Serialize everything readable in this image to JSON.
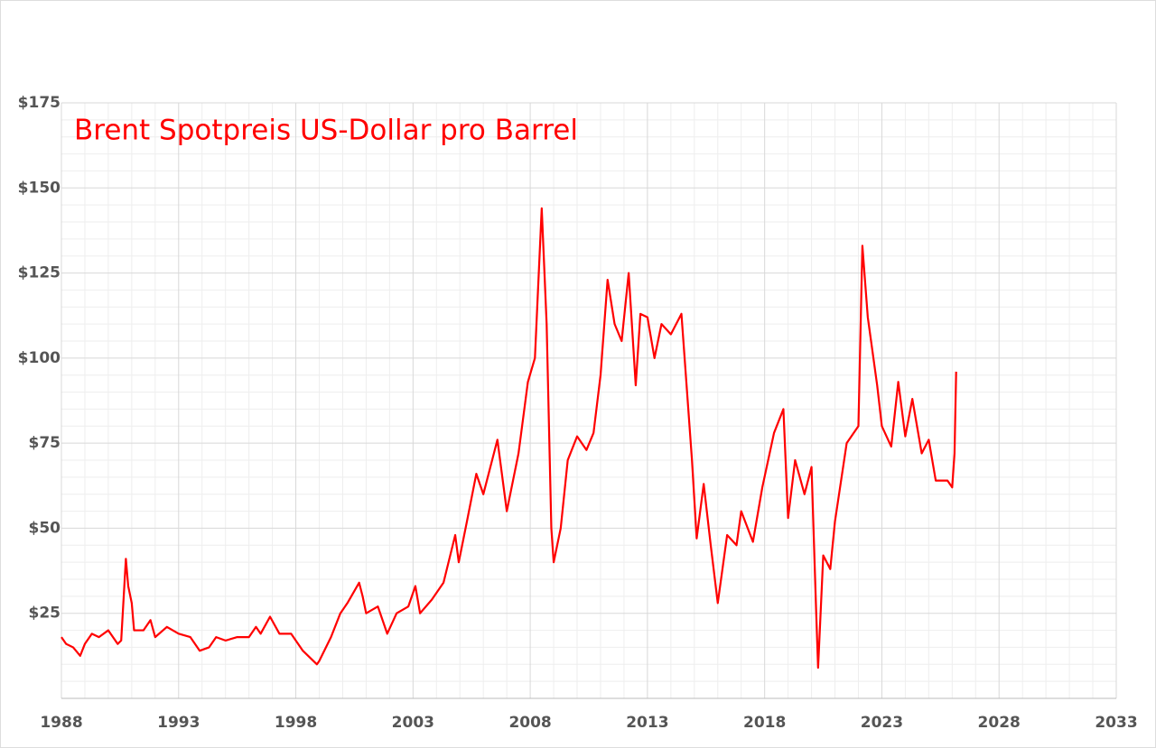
{
  "chart_data": {
    "type": "line",
    "title": "Brent Spotpreis US-Dollar pro Barrel",
    "title_color": "#ff0000",
    "series": [
      {
        "name": "Brent",
        "color": "#ff0000",
        "x": [
          1988.0,
          1988.2,
          1988.5,
          1988.8,
          1989.0,
          1989.3,
          1989.6,
          1990.0,
          1990.4,
          1990.55,
          1990.75,
          1990.85,
          1991.0,
          1991.1,
          1991.5,
          1991.8,
          1992.0,
          1992.5,
          1993.0,
          1993.5,
          1993.9,
          1994.3,
          1994.6,
          1995.0,
          1995.5,
          1996.0,
          1996.3,
          1996.5,
          1996.9,
          1997.3,
          1997.8,
          1998.3,
          1998.9,
          1999.0,
          1999.5,
          1999.9,
          2000.2,
          2000.7,
          2000.85,
          2001.0,
          2001.5,
          2001.9,
          2002.3,
          2002.8,
          2003.1,
          2003.3,
          2003.8,
          2004.3,
          2004.8,
          2004.95,
          2005.3,
          2005.7,
          2006.0,
          2006.6,
          2007.0,
          2007.5,
          2007.9,
          2008.2,
          2008.49,
          2008.7,
          2008.9,
          2009.0,
          2009.3,
          2009.6,
          2010.0,
          2010.4,
          2010.7,
          2011.0,
          2011.3,
          2011.6,
          2011.9,
          2012.2,
          2012.5,
          2012.7,
          2013.0,
          2013.3,
          2013.6,
          2014.0,
          2014.45,
          2014.9,
          2015.1,
          2015.4,
          2015.7,
          2016.0,
          2016.4,
          2016.8,
          2017.0,
          2017.5,
          2017.9,
          2018.4,
          2018.8,
          2019.0,
          2019.3,
          2019.7,
          2020.0,
          2020.2,
          2020.28,
          2020.5,
          2020.8,
          2021.0,
          2021.5,
          2022.0,
          2022.17,
          2022.4,
          2022.8,
          2023.0,
          2023.4,
          2023.7,
          2024.0,
          2024.3,
          2024.7,
          2025.0,
          2025.3,
          2025.8,
          2026.0,
          2026.1,
          2026.17
        ],
        "values": [
          18,
          16,
          15,
          12.5,
          16,
          19,
          18,
          20,
          16,
          17,
          41,
          33,
          28,
          20,
          20,
          23,
          18,
          21,
          19,
          18,
          14,
          15,
          18,
          17,
          18,
          18,
          21,
          19,
          24,
          19,
          19,
          14,
          10,
          11,
          18,
          25,
          28,
          34,
          30,
          25,
          27,
          19,
          25,
          27,
          33,
          25,
          29,
          34,
          48,
          40,
          52,
          66,
          60,
          76,
          55,
          72,
          93,
          100,
          144,
          110,
          50,
          40,
          50,
          70,
          77,
          73,
          78,
          95,
          123,
          110,
          105,
          125,
          92,
          113,
          112,
          100,
          110,
          107,
          113,
          70,
          47,
          63,
          45,
          28,
          48,
          45,
          55,
          46,
          62,
          78,
          85,
          53,
          70,
          60,
          68,
          25,
          9,
          42,
          38,
          52,
          75,
          80,
          133,
          112,
          92,
          80,
          74,
          93,
          77,
          88,
          72,
          76,
          64,
          64,
          62,
          72,
          96
        ]
      }
    ],
    "xlim": [
      1988,
      2033
    ],
    "xticks": [
      1988,
      1993,
      1998,
      2003,
      2008,
      2013,
      2018,
      2023,
      2028,
      2033
    ],
    "ylim": [
      0,
      175
    ],
    "yticks": [
      {
        "value": 25,
        "label": "$25"
      },
      {
        "value": 50,
        "label": "$50"
      },
      {
        "value": 75,
        "label": "$75"
      },
      {
        "value": 100,
        "label": "$100"
      },
      {
        "value": 125,
        "label": "$125"
      },
      {
        "value": 150,
        "label": "$150"
      },
      {
        "value": 175,
        "label": "$175"
      }
    ],
    "grid": true,
    "minor_grid": true
  }
}
